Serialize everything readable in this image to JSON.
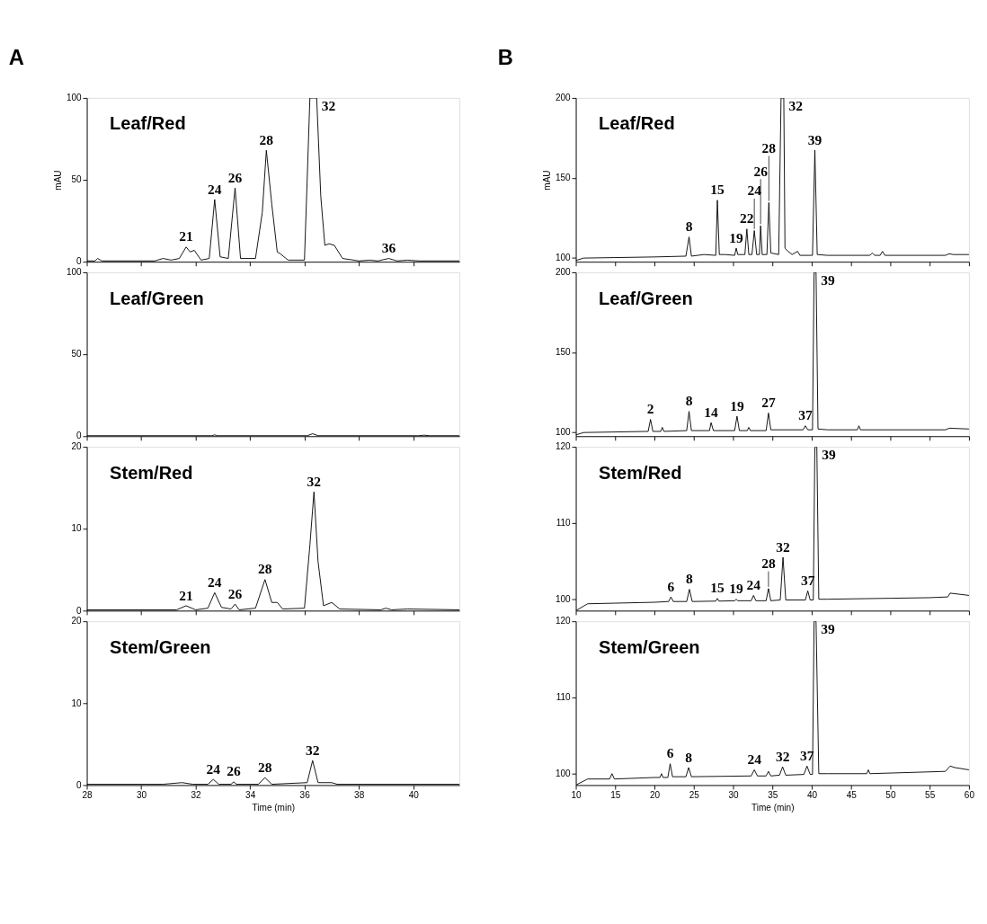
{
  "chart_data": [
    {
      "type": "line",
      "title": "Leaf/Red",
      "ylabel": "mAU",
      "xlim": [
        28,
        41.7
      ],
      "xticks": [
        28,
        30,
        32,
        34,
        36,
        38,
        40
      ],
      "ylim": [
        0,
        100
      ],
      "yticks": [
        0,
        50,
        100
      ],
      "tick_labels": "y",
      "series": [
        {
          "color": "#000000",
          "x": [
            28,
            28.3,
            28.4,
            28.55,
            30.5,
            30.8,
            31.1,
            31.4,
            31.65,
            31.8,
            31.95,
            32.2,
            32.5,
            32.7,
            32.9,
            33.2,
            33.45,
            33.65,
            34.2,
            34.45,
            34.6,
            34.8,
            35.0,
            35.1,
            35.4,
            36.0,
            36.1,
            36.2,
            36.45,
            36.6,
            36.75,
            36.9,
            37.1,
            37.4,
            38.0,
            38.4,
            38.7,
            39.1,
            39.4,
            39.8,
            40.2,
            41.7
          ],
          "values": [
            0.5,
            0.5,
            2,
            0.5,
            0.5,
            2,
            1,
            2,
            9,
            6,
            7,
            1,
            2,
            38,
            3,
            2,
            45,
            2,
            2,
            30,
            68,
            35,
            6,
            5,
            1,
            1,
            50,
            100,
            100,
            40,
            10,
            11,
            10,
            2,
            0.5,
            1,
            0.5,
            2,
            0.5,
            1,
            0.5,
            0.5
          ]
        }
      ],
      "annotations": [
        "A",
        {
          "text": "21",
          "x": 31.65,
          "y": 9
        },
        {
          "text": "24",
          "x": 32.7,
          "y": 38
        },
        {
          "text": "26",
          "x": 33.45,
          "y": 45
        },
        {
          "text": "28",
          "x": 34.6,
          "y": 68
        },
        {
          "text": "32",
          "x": 36.45,
          "y": 100
        },
        {
          "text": "36",
          "x": 39.1,
          "y": 2
        }
      ]
    },
    {
      "type": "line",
      "title": "Leaf/Green",
      "xlim": [
        28,
        41.7
      ],
      "xticks": [
        28,
        30,
        32,
        34,
        36,
        38,
        40
      ],
      "ylim": [
        0,
        100
      ],
      "yticks": [
        0,
        50,
        100
      ],
      "tick_labels": "y",
      "series": [
        {
          "color": "#000000",
          "x": [
            28,
            32.6,
            32.7,
            32.8,
            36.1,
            36.3,
            36.5,
            40.2,
            40.4,
            40.6,
            41.7
          ],
          "values": [
            0.3,
            0.3,
            0.8,
            0.3,
            0.3,
            1.5,
            0.3,
            0.3,
            0.6,
            0.3,
            0.3
          ]
        }
      ]
    },
    {
      "type": "line",
      "title": "Stem/Red",
      "xlim": [
        28,
        41.7
      ],
      "xticks": [
        28,
        30,
        32,
        34,
        36,
        38,
        40
      ],
      "ylim": [
        0,
        20
      ],
      "yticks": [
        0,
        10,
        20
      ],
      "tick_labels": "y",
      "series": [
        {
          "color": "#000000",
          "x": [
            28,
            31.3,
            31.65,
            32.0,
            32.45,
            32.7,
            32.95,
            33.3,
            33.45,
            33.6,
            34.2,
            34.55,
            34.8,
            35.0,
            35.2,
            36.0,
            36.2,
            36.35,
            36.5,
            36.7,
            37.0,
            37.3,
            38.8,
            39.0,
            39.2,
            39.8,
            41.7
          ],
          "values": [
            0.1,
            0.1,
            0.6,
            0.1,
            0.3,
            2.2,
            0.4,
            0.2,
            0.8,
            0.1,
            0.3,
            3.8,
            1.0,
            1.0,
            0.2,
            0.3,
            8,
            14.5,
            6,
            0.6,
            1.0,
            0.2,
            0.1,
            0.3,
            0.1,
            0.2,
            0.1
          ]
        }
      ],
      "annotations": [
        {
          "text": "21",
          "x": 31.65,
          "y": 0.6
        },
        {
          "text": "24",
          "x": 32.7,
          "y": 2.2
        },
        {
          "text": "26",
          "x": 33.45,
          "y": 0.8
        },
        {
          "text": "28",
          "x": 34.55,
          "y": 3.8
        },
        {
          "text": "32",
          "x": 36.35,
          "y": 14.5
        }
      ]
    },
    {
      "type": "line",
      "title": "Stem/Green",
      "xlabel": "Time (min)",
      "xlim": [
        28,
        41.7
      ],
      "xticks": [
        28,
        30,
        32,
        34,
        36,
        38,
        40
      ],
      "ylim": [
        0,
        20
      ],
      "yticks": [
        0,
        10,
        20
      ],
      "series": [
        {
          "color": "#000000",
          "x": [
            28,
            30.8,
            31.5,
            31.9,
            32.45,
            32.65,
            32.85,
            33.3,
            33.4,
            33.5,
            34.3,
            34.55,
            34.8,
            36.1,
            36.3,
            36.5,
            37.0,
            37.2,
            41.7
          ],
          "values": [
            0.1,
            0.1,
            0.3,
            0.1,
            0.1,
            0.7,
            0.1,
            0.1,
            0.4,
            0.1,
            0.1,
            0.9,
            0.1,
            0.3,
            3.0,
            0.3,
            0.3,
            0.1,
            0.1
          ]
        }
      ],
      "annotations": [
        {
          "text": "24",
          "x": 32.65,
          "y": 0.7
        },
        {
          "text": "26",
          "x": 33.4,
          "y": 0.4
        },
        {
          "text": "28",
          "x": 34.55,
          "y": 0.9
        },
        {
          "text": "32",
          "x": 36.3,
          "y": 3.0
        }
      ]
    },
    {
      "type": "line",
      "title": "Leaf/Red",
      "ylabel": "mAU",
      "xlim": [
        10,
        60
      ],
      "xticks": [
        10,
        15,
        20,
        25,
        30,
        35,
        40,
        45,
        50,
        55,
        60
      ],
      "ylim": [
        97.5,
        200
      ],
      "yticks": [
        100,
        150,
        200
      ],
      "tick_labels": "y",
      "series": [
        {
          "color": "#000000",
          "x": [
            10,
            11,
            20,
            24.0,
            24.4,
            24.7,
            26.3,
            27.8,
            28.0,
            28.25,
            29.0,
            30.2,
            30.4,
            30.6,
            31.5,
            31.75,
            32.0,
            32.4,
            32.7,
            33.0,
            33.35,
            33.5,
            33.7,
            34.3,
            34.55,
            34.8,
            35.8,
            36.1,
            36.45,
            36.6,
            37.0,
            37.5,
            38.2,
            38.5,
            40.1,
            40.4,
            40.7,
            42,
            47.4,
            47.7,
            48.0,
            48.7,
            49.0,
            49.3,
            57,
            57.5,
            58,
            60
          ],
          "values": [
            98.3,
            99.8,
            100.5,
            101,
            113,
            101,
            102,
            101.5,
            136,
            102,
            102,
            101.5,
            106,
            102,
            102,
            118,
            102,
            102,
            117,
            102,
            102,
            120,
            102,
            102,
            134.5,
            103,
            102,
            200,
            200,
            106,
            104,
            102,
            104,
            101.5,
            101.5,
            167.4,
            102,
            101.5,
            101.5,
            103,
            101.5,
            101.5,
            104,
            101.5,
            101.5,
            102.5,
            102,
            102
          ]
        }
      ],
      "annotations": [
        "B",
        {
          "text": "8",
          "x": 24.4,
          "y": 113
        },
        {
          "text": "15",
          "x": 28.0,
          "y": 136
        },
        {
          "text": "19",
          "x": 30.4,
          "y": 106
        },
        {
          "text": "22",
          "x": 31.75,
          "y": 118
        },
        {
          "text": "24",
          "x": 32.7,
          "y": 117
        },
        {
          "text": "26",
          "x": 33.5,
          "y": 120
        },
        {
          "text": "28",
          "x": 34.55,
          "y": 134.5
        },
        {
          "text": "32",
          "x": 36.45,
          "y": 200
        },
        {
          "text": "39",
          "x": 40.4,
          "y": 167.4
        }
      ]
    },
    {
      "type": "line",
      "title": "Leaf/Green",
      "xlim": [
        10,
        60
      ],
      "xticks": [
        10,
        15,
        20,
        25,
        30,
        35,
        40,
        45,
        50,
        55,
        60
      ],
      "ylim": [
        97.5,
        200
      ],
      "yticks": [
        100,
        150,
        200
      ],
      "tick_labels": "y",
      "series": [
        {
          "color": "#000000",
          "x": [
            10,
            11,
            19.2,
            19.5,
            19.8,
            20.8,
            21.0,
            21.2,
            24.1,
            24.4,
            24.7,
            27.0,
            27.2,
            27.5,
            30.2,
            30.5,
            30.8,
            31.8,
            32.0,
            32.2,
            34.2,
            34.5,
            34.8,
            38.9,
            39.2,
            39.5,
            40.1,
            40.3,
            40.55,
            40.8,
            42,
            45.8,
            46.0,
            46.2,
            57,
            57.5,
            60
          ],
          "values": [
            98.3,
            99.8,
            100.5,
            108,
            100.5,
            100.5,
            103,
            100.5,
            101,
            113,
            101,
            101,
            106,
            101,
            101,
            110,
            101,
            101,
            103,
            101,
            101,
            112,
            101.5,
            101.5,
            104,
            101.5,
            101.5,
            200,
            200,
            102,
            101.5,
            101.5,
            104,
            101.5,
            101.5,
            102.5,
            102
          ]
        }
      ],
      "annotations": [
        {
          "text": "2",
          "x": 19.5,
          "y": 108
        },
        {
          "text": "8",
          "x": 24.4,
          "y": 113
        },
        {
          "text": "14",
          "x": 27.2,
          "y": 106
        },
        {
          "text": "19",
          "x": 30.5,
          "y": 110
        },
        {
          "text": "27",
          "x": 34.5,
          "y": 112
        },
        {
          "text": "37",
          "x": 39.2,
          "y": 104
        },
        {
          "text": "39",
          "x": 40.55,
          "y": 200
        }
      ]
    },
    {
      "type": "line",
      "title": "Stem/Red",
      "xlim": [
        10,
        60
      ],
      "xticks": [
        10,
        15,
        20,
        25,
        30,
        35,
        40,
        45,
        50,
        55,
        60
      ],
      "ylim": [
        98.5,
        120
      ],
      "yticks": [
        100,
        110,
        120
      ],
      "tick_labels": "y",
      "series": [
        {
          "color": "#000000",
          "x": [
            10,
            11.5,
            20,
            21.8,
            22.1,
            22.4,
            24.1,
            24.45,
            24.8,
            27.8,
            28.0,
            28.2,
            30.2,
            30.4,
            30.6,
            32.3,
            32.6,
            32.9,
            34.2,
            34.5,
            34.8,
            36.0,
            36.35,
            36.7,
            39.2,
            39.5,
            39.8,
            40.2,
            40.4,
            40.65,
            40.9,
            42,
            55,
            57.3,
            57.6,
            60
          ],
          "values": [
            98.5,
            99.4,
            99.6,
            99.7,
            100.3,
            99.7,
            99.7,
            101.3,
            99.7,
            99.75,
            100.1,
            99.75,
            99.8,
            100.0,
            99.8,
            99.8,
            100.5,
            99.8,
            99.8,
            101.4,
            99.8,
            99.9,
            105.5,
            99.9,
            99.9,
            101.1,
            99.9,
            99.9,
            120,
            120,
            100,
            100,
            100.2,
            100.3,
            100.8,
            100.5
          ]
        }
      ],
      "annotations": [
        {
          "text": "6",
          "x": 22.1,
          "y": 100.3
        },
        {
          "text": "8",
          "x": 24.45,
          "y": 101.3
        },
        {
          "text": "15",
          "x": 28.0,
          "y": 100.1
        },
        {
          "text": "19",
          "x": 30.4,
          "y": 100.0
        },
        {
          "text": "24",
          "x": 32.6,
          "y": 100.5
        },
        {
          "text": "28",
          "x": 34.5,
          "y": 101.4
        },
        {
          "text": "32",
          "x": 36.35,
          "y": 105.5
        },
        {
          "text": "37",
          "x": 39.5,
          "y": 101.1
        },
        {
          "text": "39",
          "x": 40.65,
          "y": 120
        }
      ]
    },
    {
      "type": "line",
      "title": "Stem/Green",
      "xlabel": "Time (min)",
      "xlim": [
        10,
        60
      ],
      "xticks": [
        10,
        15,
        20,
        25,
        30,
        35,
        40,
        45,
        50,
        55,
        60
      ],
      "ylim": [
        98.5,
        120
      ],
      "yticks": [
        100,
        110,
        120
      ],
      "series": [
        {
          "color": "#000000",
          "x": [
            10,
            11.5,
            14.3,
            14.6,
            14.9,
            20,
            20.7,
            20.9,
            21.1,
            21.7,
            22.0,
            22.3,
            24.0,
            24.35,
            24.7,
            32.3,
            32.7,
            33.1,
            34.2,
            34.5,
            34.8,
            35.9,
            36.3,
            36.7,
            39.0,
            39.4,
            39.8,
            40.1,
            40.3,
            40.55,
            40.9,
            42,
            47.0,
            47.2,
            47.4,
            57,
            57.6,
            58.2,
            60
          ],
          "values": [
            98.5,
            99.3,
            99.3,
            100.0,
            99.3,
            99.5,
            99.5,
            100,
            99.5,
            99.5,
            101.3,
            99.6,
            99.6,
            100.8,
            99.6,
            99.7,
            100.5,
            99.7,
            99.7,
            100.3,
            99.7,
            99.8,
            100.9,
            99.8,
            99.9,
            101.0,
            99.9,
            99.9,
            120,
            120,
            100,
            100,
            100,
            100.5,
            100,
            100.3,
            101,
            100.8,
            100.5
          ]
        }
      ],
      "annotations": [
        {
          "text": "6",
          "x": 22.0,
          "y": 101.3
        },
        {
          "text": "8",
          "x": 24.35,
          "y": 100.8
        },
        {
          "text": "24",
          "x": 32.7,
          "y": 100.5
        },
        {
          "text": "32",
          "x": 36.3,
          "y": 100.9
        },
        {
          "text": "37",
          "x": 39.4,
          "y": 101.0
        },
        {
          "text": "39",
          "x": 40.55,
          "y": 120
        }
      ]
    }
  ]
}
